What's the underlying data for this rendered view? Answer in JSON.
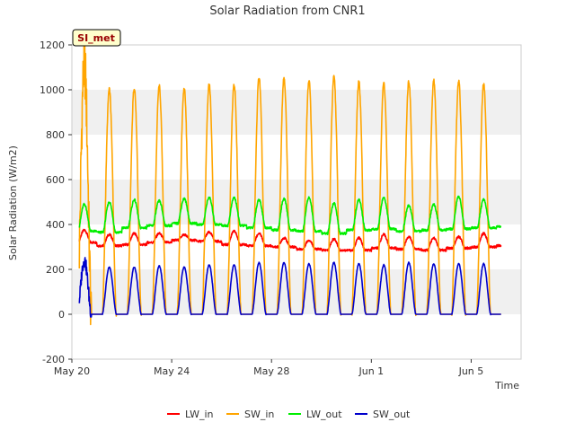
{
  "chart_data": {
    "type": "line",
    "title": "Solar Radiation from CNR1",
    "xlabel": "Time",
    "ylabel": "Solar Radiation (W/m2)",
    "station_label": "SI_met",
    "ylim": [
      -200,
      1200
    ],
    "yticks": [
      -200,
      0,
      200,
      400,
      600,
      800,
      1000,
      1200
    ],
    "xlim": [
      0,
      18
    ],
    "xticks": [
      {
        "label": "May 20",
        "day": 0
      },
      {
        "label": "May 24",
        "day": 4
      },
      {
        "label": "May 28",
        "day": 8
      },
      {
        "label": "Jun 1",
        "day": 12
      },
      {
        "label": "Jun 5",
        "day": 16
      }
    ],
    "grid": "horizontal bands",
    "legend_position": "bottom",
    "data_start_day": 0.3,
    "data_end_day": 17.2,
    "days": [
      "May 20",
      "May 21",
      "May 22",
      "May 23",
      "May 24",
      "May 25",
      "May 26",
      "May 27",
      "May 28",
      "May 29",
      "May 30",
      "May 31",
      "Jun 1",
      "Jun 2",
      "Jun 3",
      "Jun 4",
      "Jun 5",
      "Jun 6"
    ],
    "series": [
      {
        "name": "LW_in",
        "color": "#ff0000",
        "daily_night": [
          320,
          305,
          310,
          320,
          330,
          325,
          310,
          305,
          300,
          290,
          285,
          285,
          295,
          290,
          285,
          295,
          300,
          305
        ],
        "daily_peak": [
          375,
          355,
          360,
          360,
          355,
          365,
          370,
          360,
          340,
          330,
          335,
          340,
          355,
          345,
          340,
          345,
          360,
          360
        ]
      },
      {
        "name": "SW_in",
        "color": "#ffa500",
        "daily_night": [
          0,
          0,
          0,
          0,
          0,
          0,
          0,
          0,
          0,
          0,
          0,
          0,
          0,
          0,
          0,
          0,
          0,
          0
        ],
        "daily_peak": [
          1110,
          1000,
          1010,
          1015,
          1005,
          1025,
          1025,
          1055,
          1055,
          1040,
          1055,
          1035,
          1030,
          1040,
          1040,
          1035,
          1025,
          0
        ]
      },
      {
        "name": "LW_out",
        "color": "#00ee00",
        "daily_night": [
          370,
          365,
          385,
          395,
          405,
          400,
          395,
          385,
          375,
          370,
          360,
          375,
          380,
          370,
          375,
          380,
          385,
          390
        ],
        "daily_peak": [
          490,
          500,
          510,
          505,
          515,
          520,
          520,
          510,
          515,
          520,
          495,
          510,
          520,
          485,
          490,
          525,
          510,
          0
        ]
      },
      {
        "name": "SW_out",
        "color": "#0000cc",
        "daily_night": [
          0,
          0,
          0,
          0,
          0,
          0,
          0,
          0,
          0,
          0,
          0,
          0,
          0,
          0,
          0,
          0,
          0,
          0
        ],
        "daily_peak": [
          240,
          210,
          210,
          215,
          210,
          220,
          220,
          230,
          230,
          225,
          230,
          225,
          220,
          230,
          225,
          225,
          225,
          0
        ]
      }
    ]
  }
}
